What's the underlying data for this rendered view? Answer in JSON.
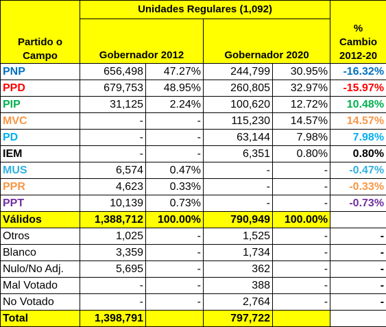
{
  "table": {
    "title": "Unidades Regulares (1,092)",
    "first_column_header": [
      "Partido o",
      "Campo"
    ],
    "group_headers": [
      "Gobernador 2012",
      "Gobernador 2020"
    ],
    "change_header": [
      "%",
      "Cambio",
      "2012-20"
    ],
    "rows": [
      {
        "cells": [
          "PNP",
          "656,498",
          "47.27%",
          "244,799",
          "30.95%",
          "-16.32%"
        ],
        "color": "#0070c0",
        "style": "party"
      },
      {
        "cells": [
          "PPD",
          "679,753",
          "48.95%",
          "260,805",
          "32.97%",
          "-15.97%"
        ],
        "color": "#ff0000",
        "style": "party"
      },
      {
        "cells": [
          "PIP",
          "31,125",
          "2.24%",
          "100,620",
          "12.72%",
          "10.48%"
        ],
        "color": "#00b050",
        "style": "party"
      },
      {
        "cells": [
          "MVC",
          "-",
          "-",
          "115,230",
          "14.57%",
          "14.57%"
        ],
        "color": "#f79646",
        "style": "party"
      },
      {
        "cells": [
          "PD",
          "-",
          "-",
          "63,144",
          "7.98%",
          "7.98%"
        ],
        "color": "#00b0f0",
        "style": "party"
      },
      {
        "cells": [
          "IEM",
          "-",
          "-",
          "6,351",
          "0.80%",
          "0.80%"
        ],
        "color": "#000000",
        "style": "party"
      },
      {
        "cells": [
          "MUS",
          "6,574",
          "0.47%",
          "-",
          "-",
          "-0.47%"
        ],
        "color": "#31b0e0",
        "style": "party"
      },
      {
        "cells": [
          "PPR",
          "4,623",
          "0.33%",
          "-",
          "-",
          "-0.33%"
        ],
        "color": "#f79646",
        "style": "party"
      },
      {
        "cells": [
          "PPT",
          "10,139",
          "0.73%",
          "-",
          "-",
          "-0.73%"
        ],
        "color": "#7030a0",
        "style": "party"
      },
      {
        "cells": [
          "Válidos",
          "1,388,712",
          "100.00%",
          "790,949",
          "100.00%",
          null
        ],
        "color": "#000000",
        "style": "total"
      },
      {
        "cells": [
          "Otros",
          "1,025",
          "-",
          "1,525",
          "-",
          "-"
        ],
        "color": "#000000",
        "style": "plain"
      },
      {
        "cells": [
          "Blanco",
          "3,359",
          "-",
          "1,734",
          "-",
          "-"
        ],
        "color": "#000000",
        "style": "plain"
      },
      {
        "cells": [
          "Nulo/No Adj.",
          "5,695",
          "-",
          "362",
          "-",
          "-"
        ],
        "color": "#000000",
        "style": "plain"
      },
      {
        "cells": [
          "Mal Votado",
          "-",
          "-",
          "388",
          "-",
          "-"
        ],
        "color": "#000000",
        "style": "plain"
      },
      {
        "cells": [
          "No Votado",
          "-",
          "-",
          "2,764",
          "-",
          "-"
        ],
        "color": "#000000",
        "style": "plain"
      },
      {
        "cells": [
          "Total",
          "1,398,791",
          null,
          "797,722",
          null,
          null
        ],
        "color": "#000000",
        "style": "total"
      }
    ]
  }
}
